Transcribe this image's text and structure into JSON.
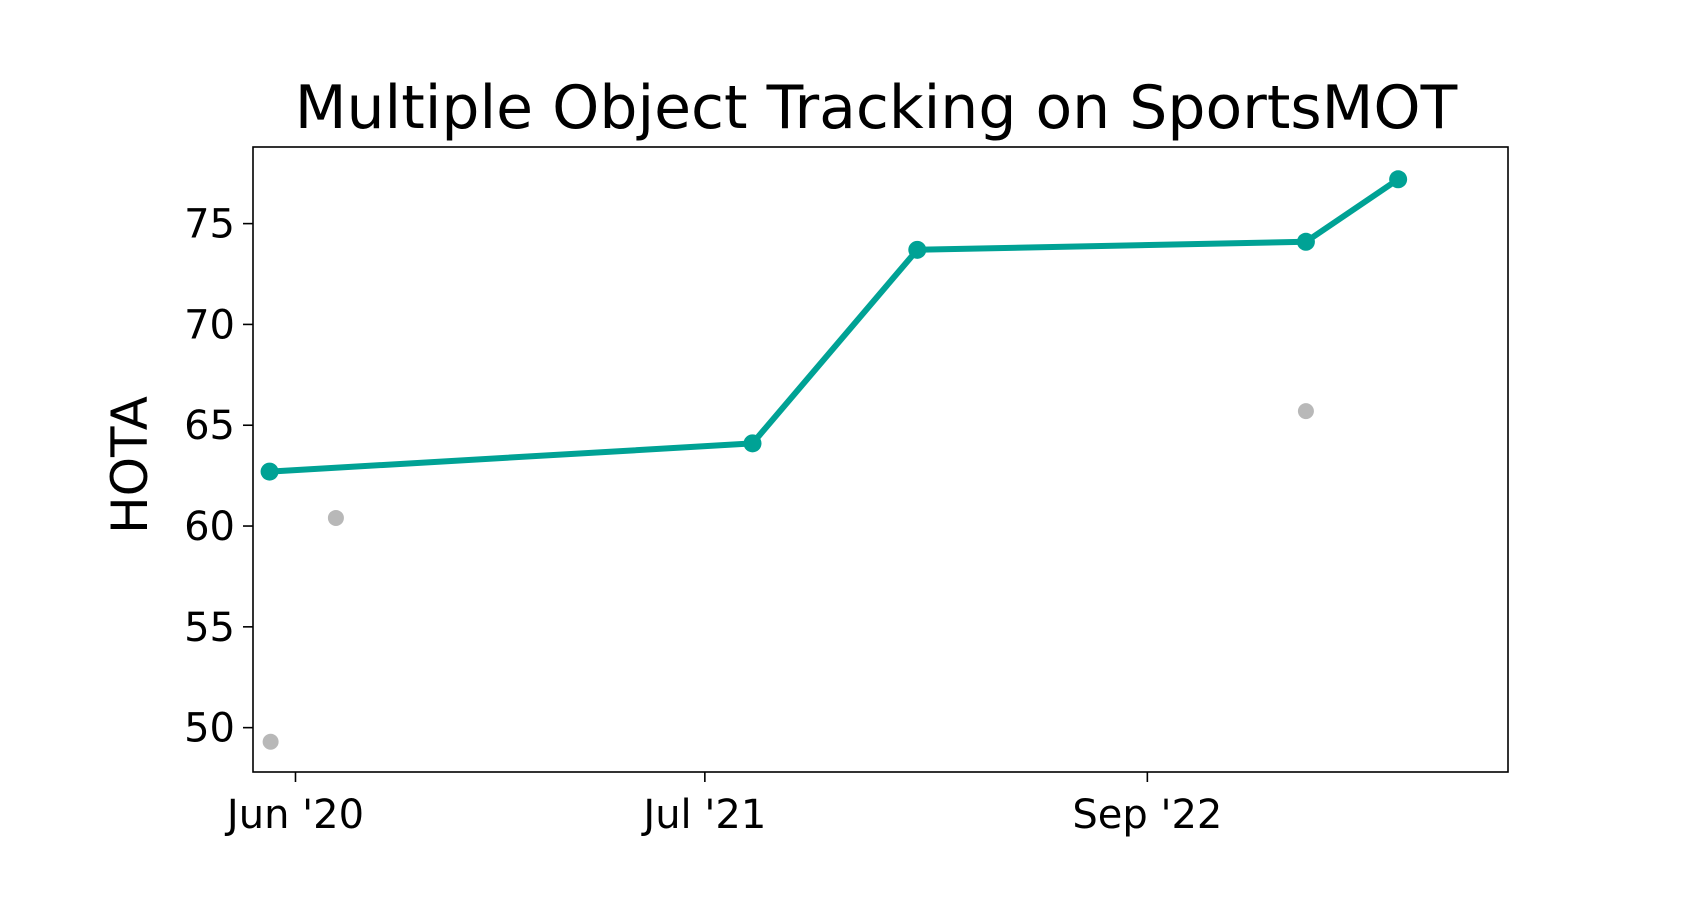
{
  "chart_data": {
    "type": "line",
    "title": "Multiple Object Tracking on SportsMOT",
    "xlabel": "",
    "ylabel": "HOTA",
    "x_axis": {
      "scale": "date",
      "range": [
        "2020-04-21",
        "2023-08-15"
      ],
      "ticks": [
        {
          "value": "2020-06-01",
          "label": "Jun '20"
        },
        {
          "value": "2021-07-01",
          "label": "Jul '21"
        },
        {
          "value": "2022-09-01",
          "label": "Sep '22"
        }
      ]
    },
    "y_axis": {
      "range": [
        47.8,
        78.8
      ],
      "ticks": [
        50,
        55,
        60,
        65,
        70,
        75
      ]
    },
    "grid": false,
    "legend": "none",
    "series": [
      {
        "role": "state-of-the-art",
        "color": "#00a295",
        "points": [
          {
            "x": "2020-05-07",
            "y": 62.7
          },
          {
            "x": "2021-08-16",
            "y": 64.1
          },
          {
            "x": "2022-01-22",
            "y": 73.7
          },
          {
            "x": "2023-02-01",
            "y": 74.1
          },
          {
            "x": "2023-05-01",
            "y": 77.2
          }
        ]
      },
      {
        "role": "other-results",
        "color": "#b8b8b8",
        "points": [
          {
            "x": "2020-05-08",
            "y": 49.3
          },
          {
            "x": "2020-07-10",
            "y": 60.4
          },
          {
            "x": "2023-02-01",
            "y": 65.7
          }
        ]
      }
    ]
  }
}
